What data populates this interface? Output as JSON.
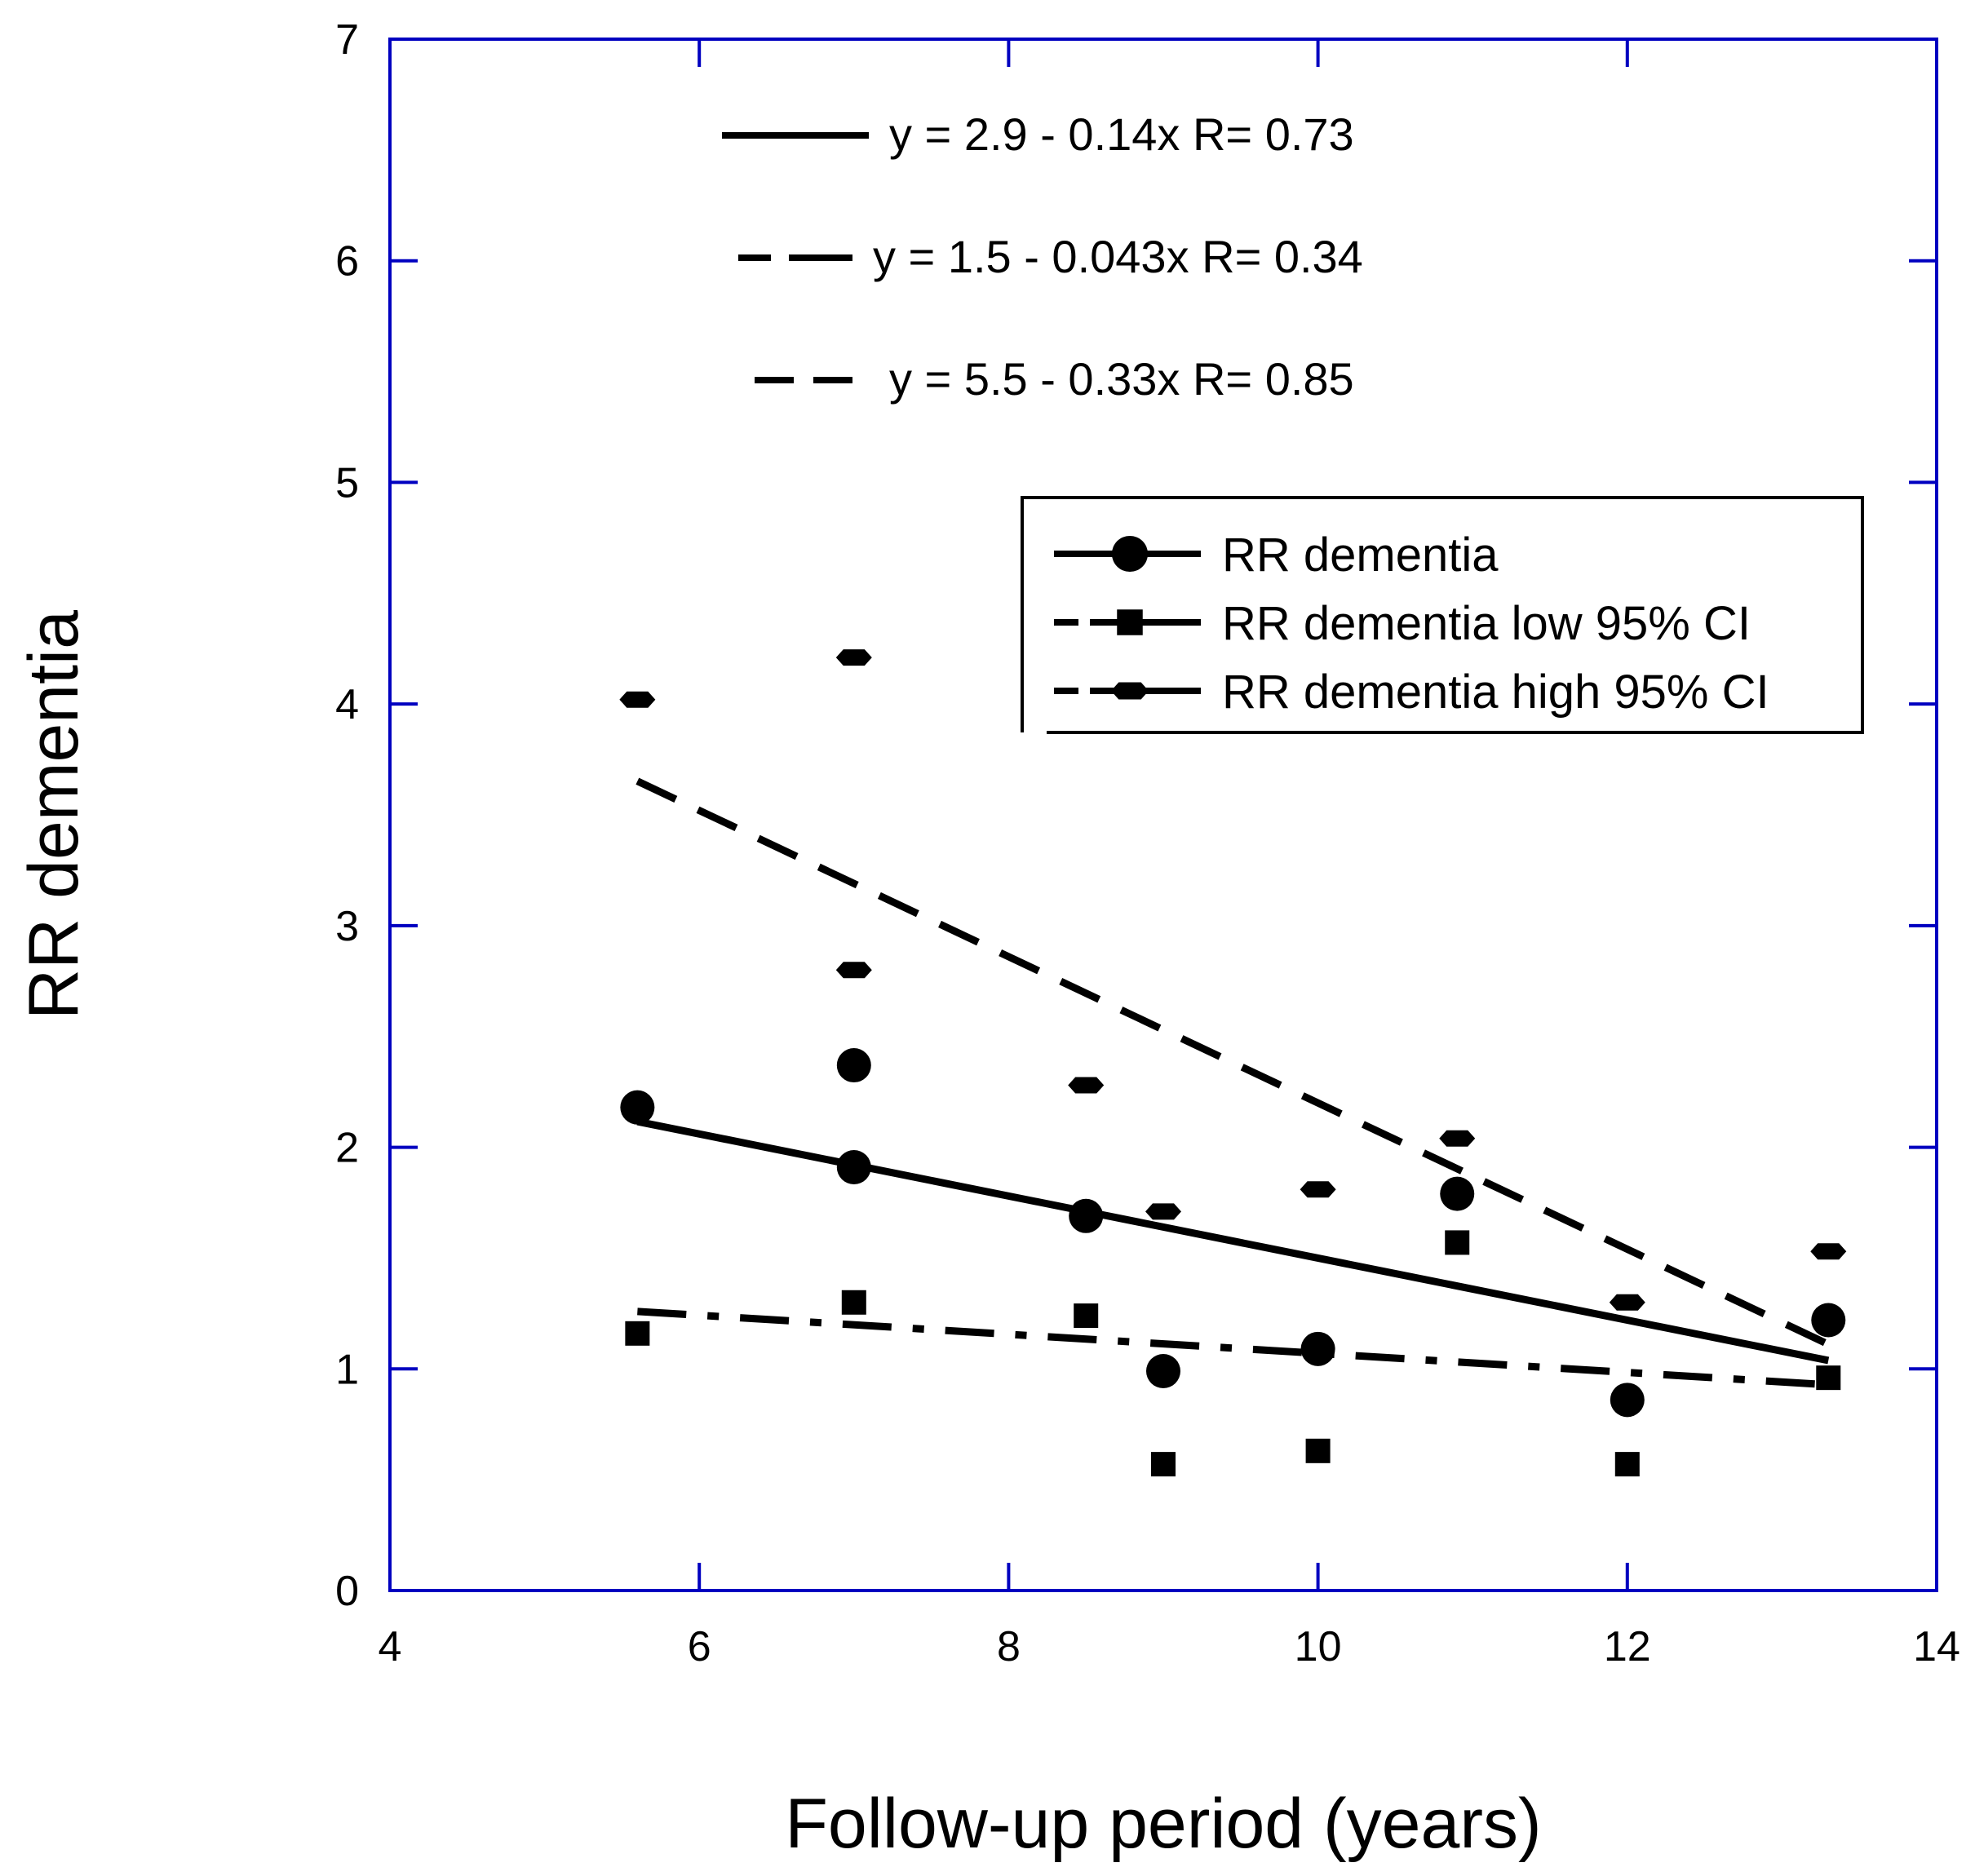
{
  "chart_data": {
    "type": "scatter",
    "xlabel": "Follow-up period (years)",
    "ylabel": "RR dementia",
    "xlim": [
      4,
      14
    ],
    "ylim": [
      0,
      7
    ],
    "xticks": [
      "4",
      "6",
      "8",
      "10",
      "12",
      "14"
    ],
    "yticks": [
      "0",
      "1",
      "2",
      "3",
      "4",
      "5",
      "6",
      "7"
    ],
    "axis_color": "#0000c0",
    "series": [
      {
        "name": "RR dementia",
        "marker": "circle",
        "x": [
          5.6,
          7.0,
          7.0,
          8.5,
          9.0,
          10.0,
          10.9,
          12.0,
          13.3
        ],
        "y": [
          2.18,
          2.37,
          1.91,
          1.69,
          0.99,
          1.09,
          1.79,
          0.86,
          1.22
        ],
        "fit": {
          "intercept": 2.9,
          "slope": -0.14,
          "r": 0.73,
          "style": "solid",
          "label": "y = 2.9 - 0.14x   R= 0.73"
        }
      },
      {
        "name": "RR dementia low 95% CI",
        "marker": "square",
        "x": [
          5.6,
          7.0,
          8.5,
          9.0,
          10.0,
          10.9,
          12.0,
          13.3
        ],
        "y": [
          1.16,
          1.3,
          1.24,
          0.57,
          0.63,
          1.57,
          0.57,
          0.96
        ],
        "fit": {
          "intercept": 1.5,
          "slope": -0.043,
          "r": 0.34,
          "style": "dashdot",
          "label": "y = 1.5 - 0.043x   R= 0.34"
        }
      },
      {
        "name": "RR dementia high 95% CI",
        "marker": "hexagon",
        "x": [
          5.6,
          7.0,
          7.0,
          8.5,
          9.0,
          10.0,
          10.9,
          12.0,
          13.3
        ],
        "y": [
          4.02,
          4.21,
          2.8,
          2.28,
          1.71,
          1.81,
          2.04,
          1.3,
          1.53
        ],
        "fit": {
          "intercept": 5.5,
          "slope": -0.33,
          "r": 0.85,
          "style": "dashed",
          "label": "y = 5.5 - 0.33x   R= 0.85"
        }
      }
    ],
    "fit_x_range": [
      5.6,
      13.3
    ],
    "legend": {
      "position": "upper-right",
      "entries": [
        "RR dementia",
        "RR dementia low 95% CI",
        "RR dementia high 95% CI"
      ]
    }
  }
}
